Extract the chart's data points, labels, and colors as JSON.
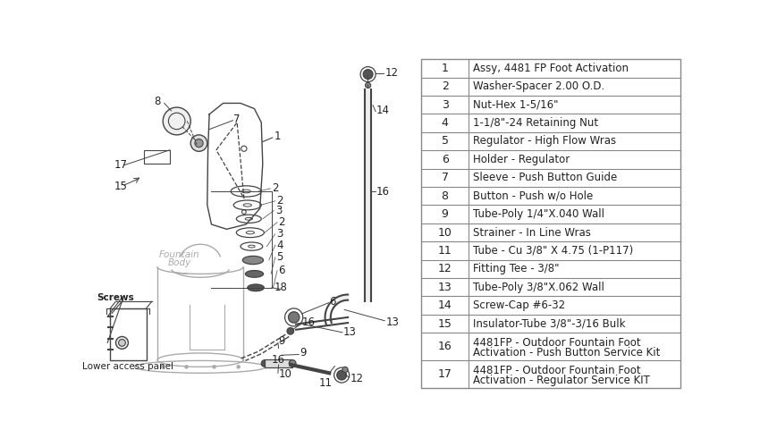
{
  "bg_color": "#ffffff",
  "text_color": "#222222",
  "line_color": "#444444",
  "gray_color": "#aaaaaa",
  "parts": [
    {
      "num": 1,
      "desc": "Assy, 4481 FP Foot Activation"
    },
    {
      "num": 2,
      "desc": "Washer-Spacer 2.00 O.D."
    },
    {
      "num": 3,
      "desc": "Nut-Hex 1-5/16\""
    },
    {
      "num": 4,
      "desc": "1-1/8\"-24 Retaining Nut"
    },
    {
      "num": 5,
      "desc": "Regulator - High Flow Wras"
    },
    {
      "num": 6,
      "desc": "Holder - Regulator"
    },
    {
      "num": 7,
      "desc": "Sleeve - Push Button Guide"
    },
    {
      "num": 8,
      "desc": "Button - Push w/o Hole"
    },
    {
      "num": 9,
      "desc": "Tube-Poly 1/4\"X.040 Wall"
    },
    {
      "num": 10,
      "desc": "Strainer - In Line Wras"
    },
    {
      "num": 11,
      "desc": "Tube - Cu 3/8\" X 4.75 (1-P117)"
    },
    {
      "num": 12,
      "desc": "Fitting Tee - 3/8\""
    },
    {
      "num": 13,
      "desc": "Tube-Poly 3/8\"X.062 Wall"
    },
    {
      "num": 14,
      "desc": "Screw-Cap #6-32"
    },
    {
      "num": 15,
      "desc": "Insulator-Tube 3/8\"-3/16 Bulk"
    },
    {
      "num": 16,
      "desc": "4481FP - Outdoor Fountain Foot\nActivation - Push Button Service Kit"
    },
    {
      "num": 17,
      "desc": "4481FP - Outdoor Fountain Foot\nActivation - Regulator Service KIT"
    }
  ]
}
